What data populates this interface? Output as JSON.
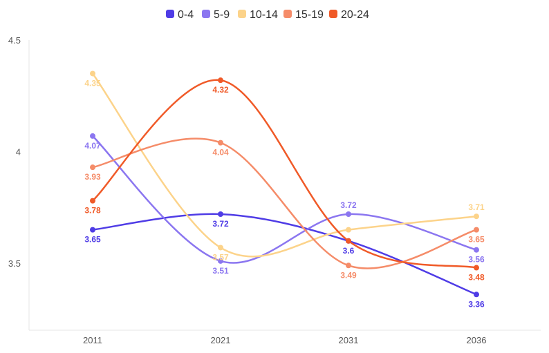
{
  "chart_data": {
    "type": "line",
    "smooth": true,
    "x": [
      "2011",
      "2021",
      "2031",
      "2036"
    ],
    "yticks": [
      "3.5",
      "4",
      "4.5"
    ],
    "ylim": [
      3.2,
      4.5
    ],
    "legend_position": "top",
    "grid": false,
    "series": [
      {
        "name": "0-4",
        "color": "#4f3ce6",
        "values": [
          3.65,
          3.72,
          3.6,
          3.36
        ],
        "labels": [
          "3.65",
          "3.72",
          "3.6",
          "3.36"
        ]
      },
      {
        "name": "5-9",
        "color": "#8b76f0",
        "values": [
          4.07,
          3.51,
          3.72,
          3.56
        ],
        "labels": [
          "4.07",
          "3.51",
          "3.72",
          "3.56"
        ]
      },
      {
        "name": "10-14",
        "color": "#fcd38a",
        "values": [
          4.35,
          3.57,
          3.65,
          3.71
        ],
        "labels": [
          "4.35",
          "3.57",
          "",
          "3.71"
        ]
      },
      {
        "name": "15-19",
        "color": "#f58c69",
        "values": [
          3.93,
          4.04,
          3.49,
          3.65
        ],
        "labels": [
          "3.93",
          "4.04",
          "3.49",
          "3.65"
        ]
      },
      {
        "name": "20-24",
        "color": "#f05a28",
        "values": [
          3.78,
          4.32,
          3.6,
          3.48
        ],
        "labels": [
          "3.78",
          "4.32",
          "",
          "3.48"
        ]
      }
    ]
  }
}
